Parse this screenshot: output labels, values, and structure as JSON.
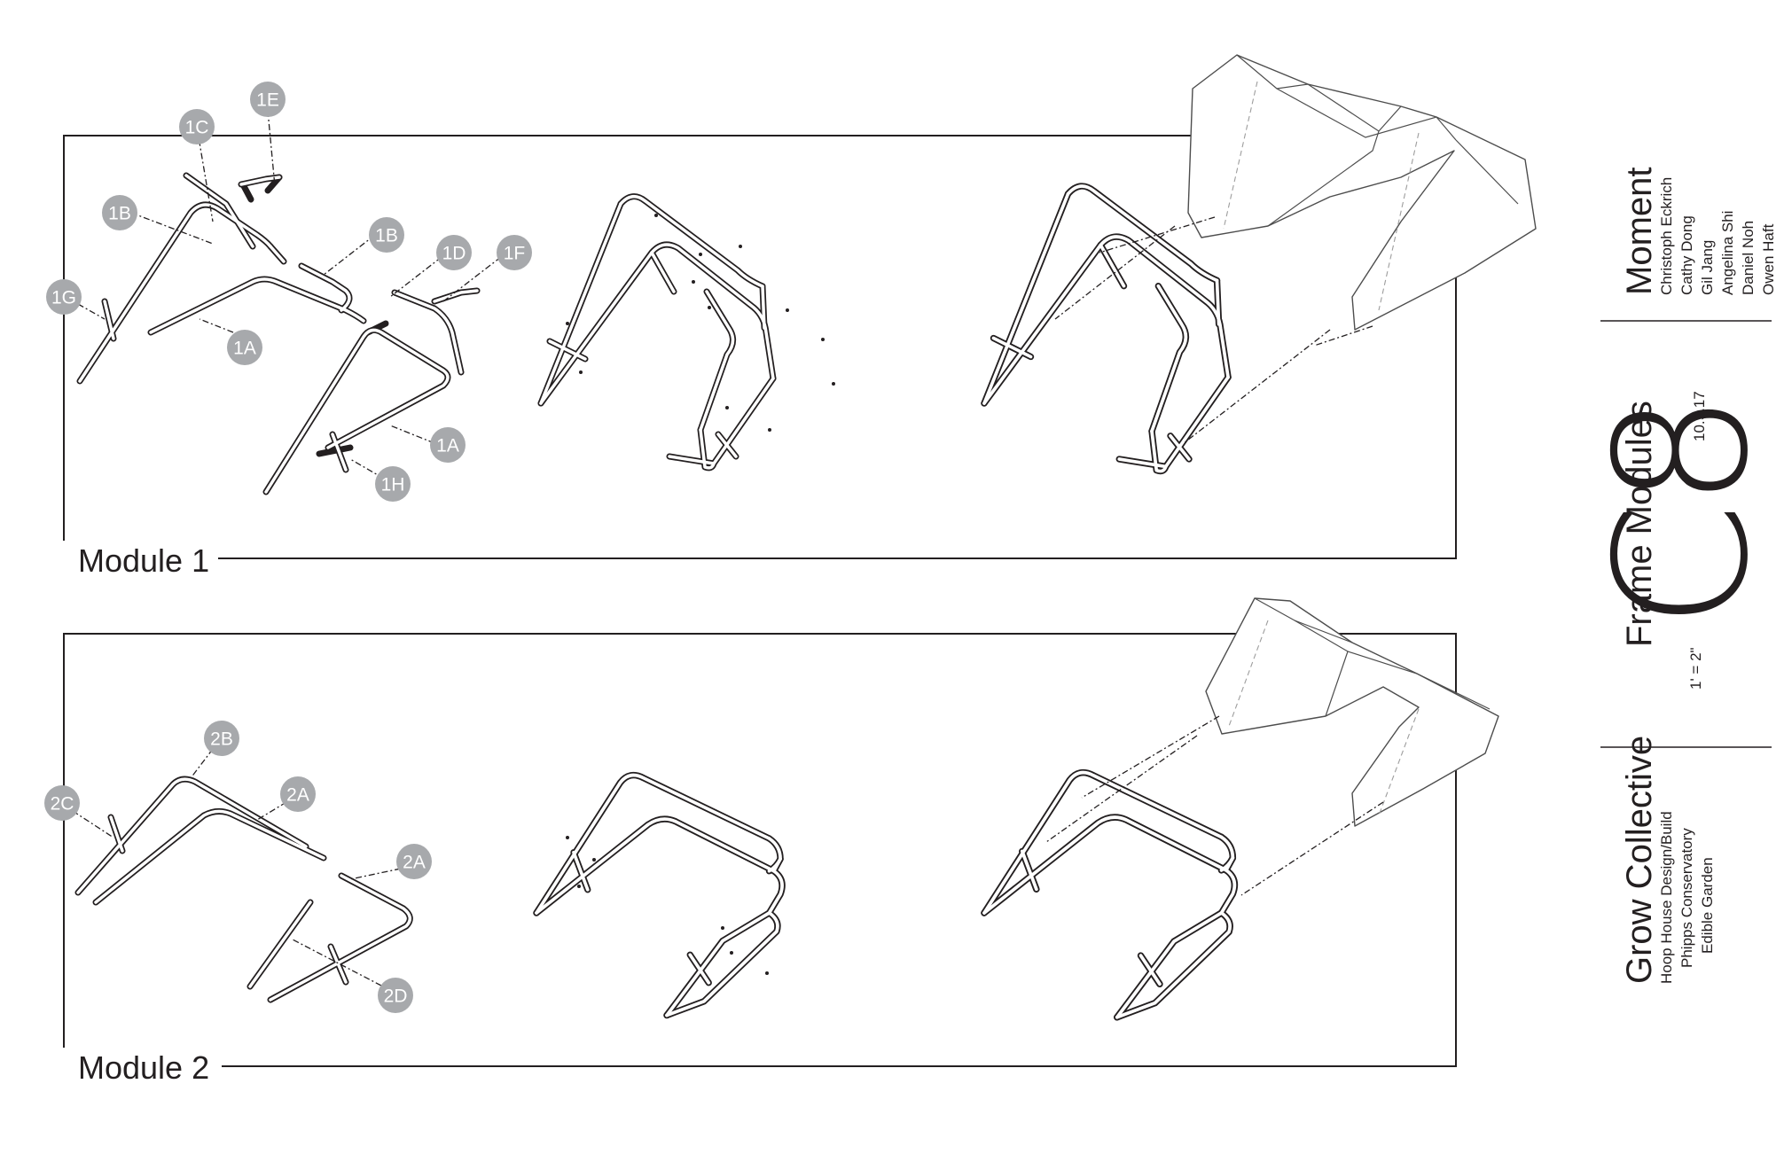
{
  "modules": [
    {
      "label": "Module 1"
    },
    {
      "label": "Module 2"
    }
  ],
  "callouts": {
    "m1": [
      "1E",
      "1C",
      "1B",
      "1B",
      "1D",
      "1F",
      "1G",
      "1A",
      "1A",
      "1H"
    ],
    "m2": [
      "2B",
      "2A",
      "2C",
      "2A",
      "2D"
    ]
  },
  "title_block": {
    "moment": {
      "title": "Moment",
      "members": [
        "Christoph Eckrich",
        "Cathy Dong",
        "Gil Jang",
        "Angelina Shi",
        "Daniel Noh",
        "Owen Haft"
      ]
    },
    "sheet": {
      "number": "C8",
      "name": "Frame Modules",
      "date": "10.9.17",
      "scale": "1' = 2\""
    },
    "project": {
      "group": "Grow Collective",
      "lines": [
        "Hoop House Design/Build",
        "Phipps Conservatory",
        "Edible Garden"
      ]
    }
  }
}
